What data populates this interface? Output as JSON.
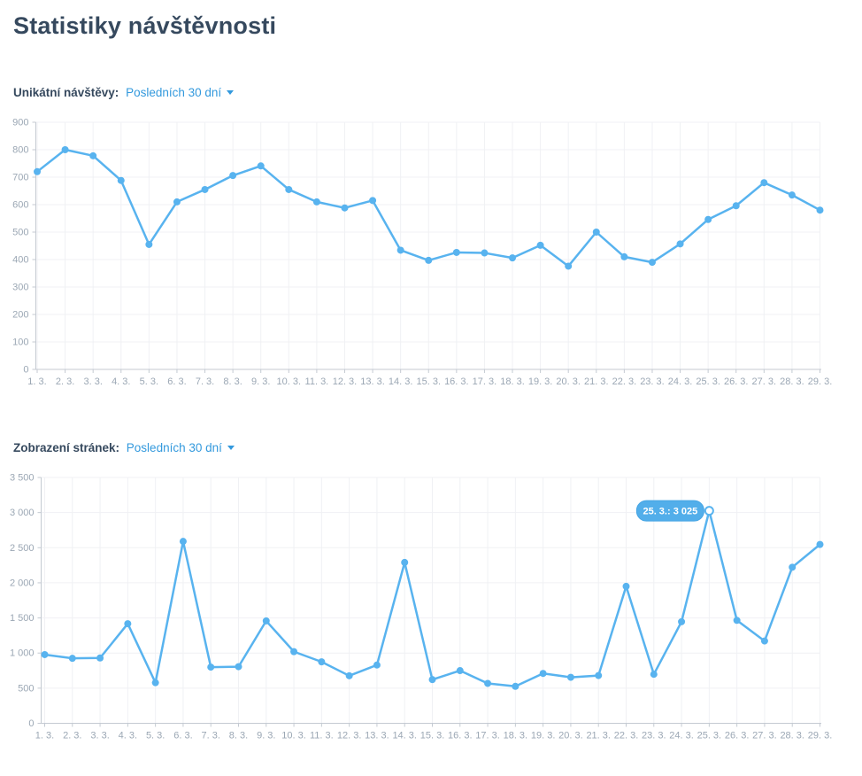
{
  "page": {
    "title": "Statistiky návštěvnosti"
  },
  "sections": [
    {
      "label": "Unikátní návštěvy:",
      "period": "Posledních 30 dní"
    },
    {
      "label": "Zobrazení stránek:",
      "period": "Posledních 30 dní"
    }
  ],
  "colors": {
    "title": "#36495e",
    "link": "#3399dd",
    "line": "#58b3ef",
    "axis": "#c4cad2",
    "grid": "#f0f1f4",
    "tick_label": "#9ba7b4",
    "tooltip_bg": "#52aeea",
    "tooltip_border": "#46a5e4",
    "tooltip_text": "#ffffff"
  },
  "chart_data": [
    {
      "type": "line",
      "title": "Unikátní návštěvy",
      "categories": [
        "1. 3.",
        "2. 3.",
        "3. 3.",
        "4. 3.",
        "5. 3.",
        "6. 3.",
        "7. 3.",
        "8. 3.",
        "9. 3.",
        "10. 3.",
        "11. 3.",
        "12. 3.",
        "13. 3.",
        "14. 3.",
        "15. 3.",
        "16. 3.",
        "17. 3.",
        "18. 3.",
        "19. 3.",
        "20. 3.",
        "21. 3.",
        "22. 3.",
        "23. 3.",
        "24. 3.",
        "25. 3.",
        "26. 3.",
        "27. 3.",
        "28. 3.",
        "29. 3."
      ],
      "values": [
        720,
        800,
        778,
        688,
        455,
        610,
        655,
        706,
        741,
        655,
        610,
        588,
        615,
        434,
        397,
        426,
        424,
        406,
        452,
        376,
        500,
        410,
        390,
        457,
        546,
        596,
        680,
        635,
        580
      ],
      "xlabel": "",
      "ylabel": "",
      "ylim": [
        0,
        900
      ],
      "ytick_step": 100,
      "grid": true,
      "legend": "none",
      "marker": "circle"
    },
    {
      "type": "line",
      "title": "Zobrazení stránek",
      "categories": [
        "1. 3.",
        "2. 3.",
        "3. 3.",
        "4. 3.",
        "5. 3.",
        "6. 3.",
        "7. 3.",
        "8. 3.",
        "9. 3.",
        "10. 3.",
        "11. 3.",
        "12. 3.",
        "13. 3.",
        "14. 3.",
        "15. 3.",
        "16. 3.",
        "17. 3.",
        "18. 3.",
        "19. 3.",
        "20. 3.",
        "21. 3.",
        "22. 3.",
        "23. 3.",
        "24. 3.",
        "25. 3.",
        "26. 3.",
        "27. 3.",
        "28. 3.",
        "29. 3."
      ],
      "values": [
        978,
        925,
        930,
        1418,
        578,
        2590,
        800,
        806,
        1458,
        1020,
        875,
        677,
        830,
        2290,
        622,
        750,
        568,
        526,
        710,
        655,
        680,
        1950,
        698,
        1446,
        3025,
        1466,
        1172,
        2222,
        2546
      ],
      "xlabel": "",
      "ylabel": "",
      "ylim": [
        0,
        3500
      ],
      "ytick_step": 500,
      "grid": true,
      "legend": "none",
      "marker": "circle",
      "tooltip": {
        "index": 24,
        "text": "25. 3.: 3 025"
      }
    }
  ]
}
